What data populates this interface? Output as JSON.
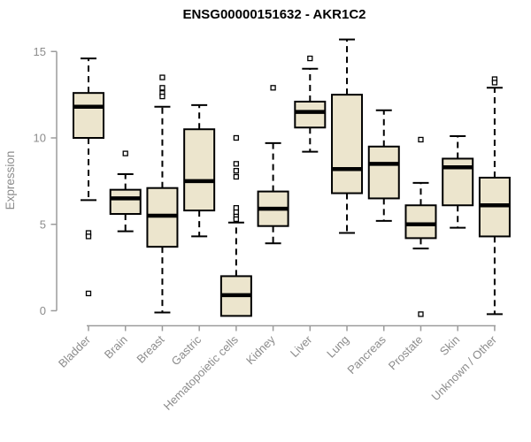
{
  "chart_data": {
    "type": "boxplot",
    "title": "ENSG00000151632 - AKR1C2",
    "ylabel": "Expression",
    "xlabel": "",
    "yticks": [
      0,
      5,
      10,
      15
    ],
    "ylim": [
      -0.9,
      16.1
    ],
    "grid": false,
    "legend": null,
    "categories": [
      "Bladder",
      "Brain",
      "Breast",
      "Gastric",
      "Hematopoietic cells",
      "Kidney",
      "Liver",
      "Lung",
      "Pancreas",
      "Prostate",
      "Skin",
      "Unknown / Other"
    ],
    "series": [
      {
        "label": "Bladder",
        "whisker_low": 6.4,
        "q1": 10.0,
        "median": 11.8,
        "q3": 12.6,
        "whisker_high": 14.6,
        "outliers": [
          4.5,
          4.3,
          1.0
        ]
      },
      {
        "label": "Brain",
        "whisker_low": 4.6,
        "q1": 5.6,
        "median": 6.5,
        "q3": 7.0,
        "whisker_high": 7.9,
        "outliers": [
          9.1
        ]
      },
      {
        "label": "Breast",
        "whisker_low": -0.1,
        "q1": 3.7,
        "median": 5.5,
        "q3": 7.1,
        "whisker_high": 11.8,
        "outliers": [
          13.5,
          12.9,
          12.6,
          12.4
        ]
      },
      {
        "label": "Gastric",
        "whisker_low": 4.3,
        "q1": 5.8,
        "median": 7.5,
        "q3": 10.5,
        "whisker_high": 11.9,
        "outliers": []
      },
      {
        "label": "Hematopoietic cells",
        "whisker_low": -0.3,
        "q1": -0.3,
        "median": 0.9,
        "q3": 2.0,
        "whisker_high": 5.1,
        "outliers": [
          10.0,
          8.5,
          8.1,
          7.75,
          5.95,
          5.7,
          5.45,
          5.3
        ]
      },
      {
        "label": "Kidney",
        "whisker_low": 3.9,
        "q1": 4.9,
        "median": 5.9,
        "q3": 6.9,
        "whisker_high": 9.7,
        "outliers": [
          12.9
        ]
      },
      {
        "label": "Liver",
        "whisker_low": 9.2,
        "q1": 10.6,
        "median": 11.5,
        "q3": 12.1,
        "whisker_high": 14.0,
        "outliers": [
          14.6
        ]
      },
      {
        "label": "Lung",
        "whisker_low": 4.5,
        "q1": 6.8,
        "median": 8.2,
        "q3": 12.5,
        "whisker_high": 15.7,
        "outliers": []
      },
      {
        "label": "Pancreas",
        "whisker_low": 5.2,
        "q1": 6.5,
        "median": 8.5,
        "q3": 9.5,
        "whisker_high": 11.6,
        "outliers": []
      },
      {
        "label": "Prostate",
        "whisker_low": 3.6,
        "q1": 4.2,
        "median": 5.0,
        "q3": 6.1,
        "whisker_high": 7.4,
        "outliers": [
          9.9,
          -0.2
        ]
      },
      {
        "label": "Skin",
        "whisker_low": 4.8,
        "q1": 6.1,
        "median": 8.3,
        "q3": 8.8,
        "whisker_high": 10.1,
        "outliers": []
      },
      {
        "label": "Unknown / Other",
        "whisker_low": -0.2,
        "q1": 4.3,
        "median": 6.1,
        "q3": 7.7,
        "whisker_high": 12.9,
        "outliers": [
          13.4,
          13.2
        ]
      }
    ],
    "colors": {
      "box_fill": "#ECE5CD",
      "box_border": "#000000",
      "median": "#000000",
      "whisker": "#000000",
      "outlier_fill": "#FFFFFF",
      "axis": "#9C9C9C",
      "axis_text": "#8C8C8C",
      "title_text": "#000000",
      "background": "#FFFFFF"
    }
  }
}
